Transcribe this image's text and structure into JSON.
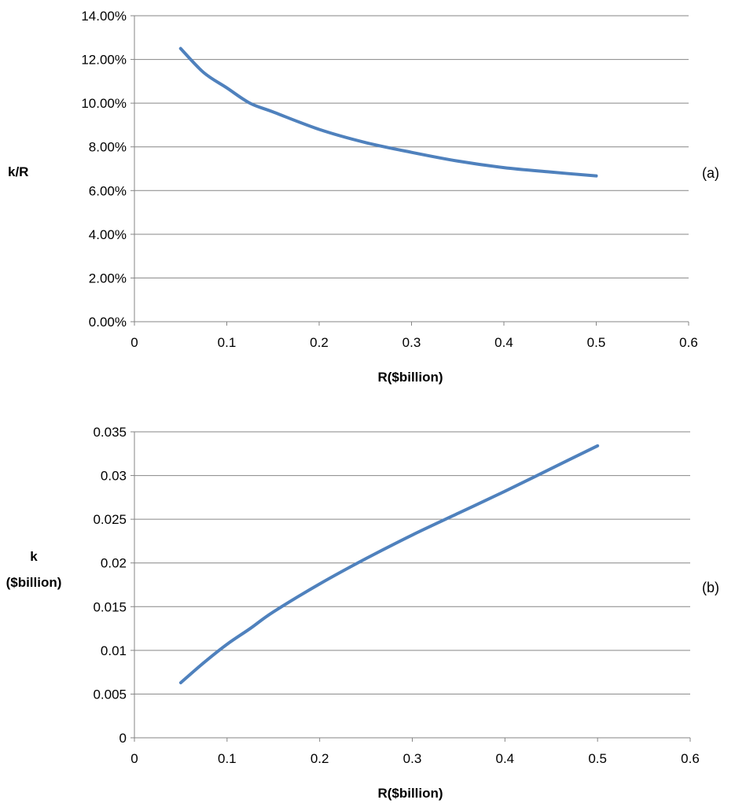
{
  "chart_data": [
    {
      "type": "line",
      "panel_label": "(a)",
      "xlabel": "R($billion)",
      "ylabel": "k/R",
      "xlim": [
        0,
        0.6
      ],
      "ylim": [
        0,
        0.14
      ],
      "x_ticks": [
        "0",
        "0.1",
        "0.2",
        "0.3",
        "0.4",
        "0.5",
        "0.6"
      ],
      "y_ticks": [
        "0.00%",
        "2.00%",
        "4.00%",
        "6.00%",
        "8.00%",
        "10.00%",
        "12.00%",
        "14.00%"
      ],
      "grid": true,
      "series": [
        {
          "color": "#4f81bd",
          "x": [
            0.05,
            0.075,
            0.1,
            0.125,
            0.15,
            0.2,
            0.25,
            0.3,
            0.35,
            0.4,
            0.45,
            0.5
          ],
          "y": [
            0.125,
            0.114,
            0.107,
            0.1,
            0.096,
            0.088,
            0.082,
            0.0775,
            0.0735,
            0.0705,
            0.0685,
            0.0667
          ]
        }
      ]
    },
    {
      "type": "line",
      "panel_label": "(b)",
      "xlabel": "R($billion)",
      "ylabel_lines": [
        "k",
        "($billion)"
      ],
      "xlim": [
        0,
        0.6
      ],
      "ylim": [
        0,
        0.035
      ],
      "x_ticks": [
        "0",
        "0.1",
        "0.2",
        "0.3",
        "0.4",
        "0.5",
        "0.6"
      ],
      "y_ticks": [
        "0",
        "0.005",
        "0.01",
        "0.015",
        "0.02",
        "0.025",
        "0.03",
        "0.035"
      ],
      "grid": true,
      "series": [
        {
          "color": "#4f81bd",
          "x": [
            0.05,
            0.075,
            0.1,
            0.125,
            0.15,
            0.2,
            0.25,
            0.3,
            0.35,
            0.4,
            0.45,
            0.5
          ],
          "y": [
            0.0063,
            0.0086,
            0.0107,
            0.0125,
            0.0144,
            0.0176,
            0.0205,
            0.0232,
            0.0257,
            0.0282,
            0.0308,
            0.0334
          ]
        }
      ]
    }
  ]
}
